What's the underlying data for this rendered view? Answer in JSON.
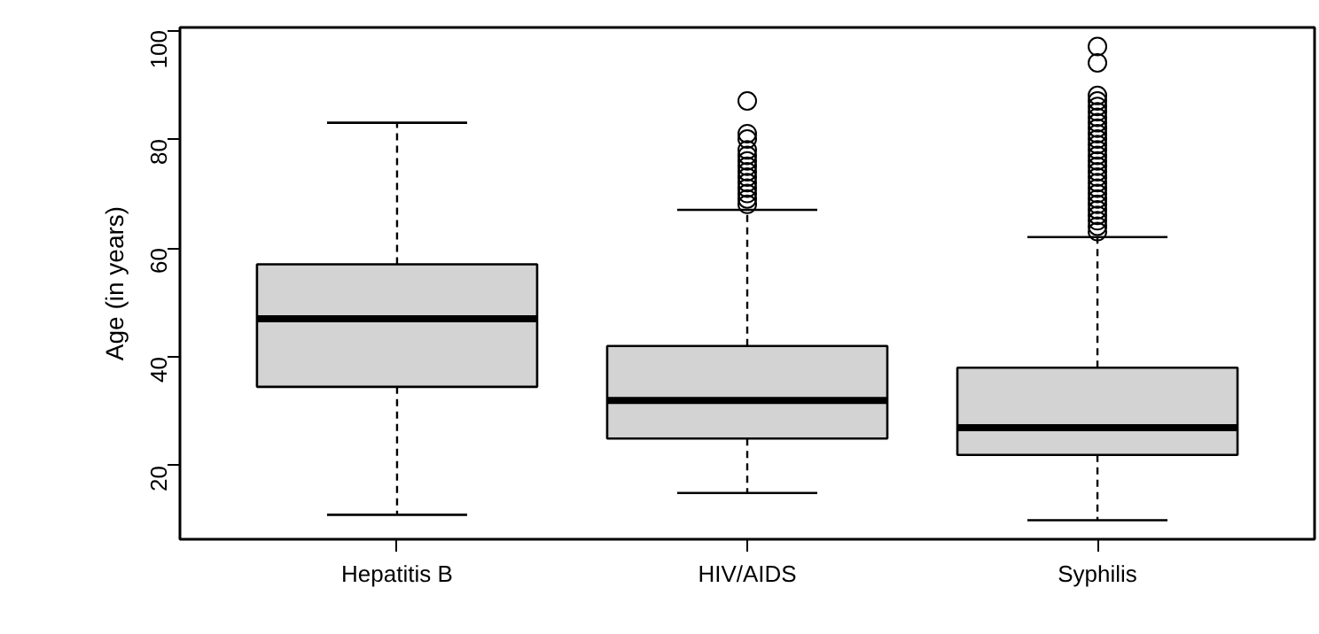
{
  "chart_data": {
    "type": "box",
    "ylabel": "Age (in years)",
    "categories": [
      "Hepatitis B",
      "HIV/AIDS",
      "Syphilis"
    ],
    "color": "#d3d3d3",
    "boxes": [
      {
        "low": 11,
        "q1": 34.5,
        "median": 47,
        "q3": 57,
        "high": 83
      },
      {
        "low": 15,
        "q1": 25,
        "median": 32,
        "q3": 42,
        "high": 67,
        "outliers": [
          87,
          81,
          80,
          78,
          77,
          76,
          75,
          74,
          73,
          72,
          71,
          70,
          69,
          68
        ]
      },
      {
        "low": 10,
        "q1": 22,
        "median": 27,
        "q3": 38,
        "high": 62,
        "outliers": [
          97,
          94,
          88,
          87,
          86,
          85,
          84,
          83,
          82,
          81,
          80,
          79,
          78,
          77,
          76,
          75,
          74,
          73,
          72,
          71,
          70,
          69,
          68,
          67,
          66,
          65,
          64,
          63
        ]
      }
    ],
    "ylim": [
      6.5,
      100.5
    ],
    "yticks": [
      20,
      40,
      60,
      80,
      100
    ],
    "grid": false
  }
}
